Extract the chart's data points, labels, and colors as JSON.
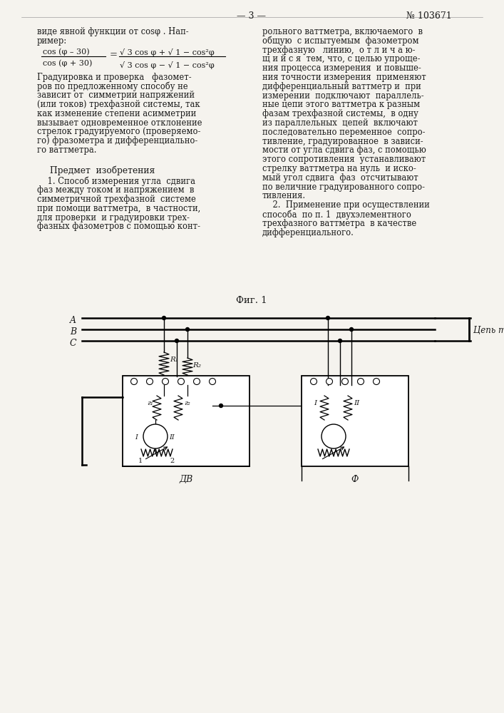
{
  "page_num": "— 3 —",
  "patent_num": "№ 103671",
  "background": "#f5f3ee",
  "text_color": "#1a1a1a",
  "fig_label": "Фиг. 1",
  "label_DV": "ДВ",
  "label_F": "Ф",
  "label_tok": "Цепь тока",
  "phase_A": "A",
  "phase_B": "B",
  "phase_C": "C",
  "left_lines": [
    "виде явной функции от cosφ . Нап-",
    "ример:",
    "",
    "Градуировка и проверка   фазомет-",
    "ров по предложенному способу не",
    "зависит от  симметрии напряжений",
    "(или токов) трехфазной системы, так",
    "как изменение степени асимметрии",
    "вызывает одновременное отклонение",
    "стрелок градуируемого (проверяемо-",
    "го) фразометра и дифференциально-",
    "го ваттметра.",
    "",
    "    Предмет  изобретения",
    "",
    "    1. Способ измерения угла  сдвига",
    "фаз между током и напряжением  в",
    "симметричной трехфазной  системе",
    "при помощи ваттметра,  в частности,",
    "для проверки  и градуировки трех-",
    "фазных фазометров с помощью конт-"
  ],
  "right_lines": [
    "рольного ваттметра, включаемого  в",
    "общую  с испытуемым  фазометром",
    "трехфазную   линию,  о т л и ч а ю-",
    "щ и й с я  тем, что, с целью упроще-",
    "ния процесса измерения  и повыше-",
    "ния точности измерения  применяют",
    "дифференциальный ваттметр и  при",
    "измерении  подключают  параллель-",
    "ные цепи этого ваттметра к разным",
    "фазам трехфазной системы,  в одну",
    "из параллельных  цепей  включают",
    "последовательно переменное  сопро-",
    "тивление, градуированное  в зависи-",
    "мости от угла сдвига фаз, с помощью",
    "этого сопротивления  устанавливают",
    "стрелку ваттметра на нуль  и иско-",
    "мый угол сдвига  фаз  отсчитывают",
    "по величние градуированного сопро-",
    "тивления.",
    "    2.  Применение при осуществлении",
    "способа  по п. 1  двухэлементного",
    "трехфазного ваттметра  в качестве",
    "дифференциального."
  ]
}
